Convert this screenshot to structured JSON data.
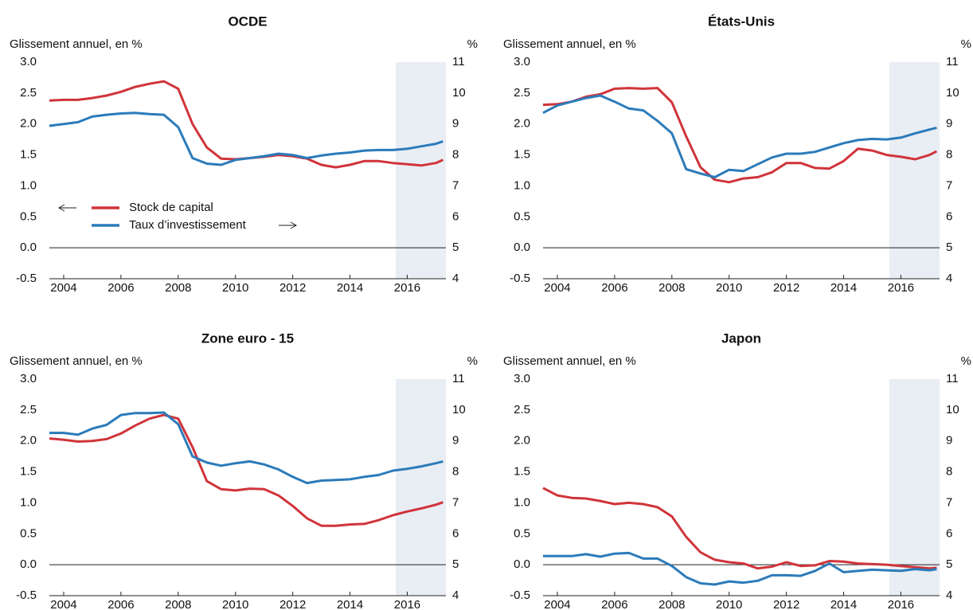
{
  "chart_data": [
    {
      "type": "line",
      "title": "OCDE",
      "ylabel": "Glissement annuel, en %",
      "y2label": "%",
      "x": [
        2003.5,
        2004,
        2004.5,
        2005,
        2005.5,
        2006,
        2006.5,
        2007,
        2007.5,
        2008,
        2008.5,
        2009,
        2009.5,
        2010,
        2010.5,
        2011,
        2011.5,
        2012,
        2012.5,
        2013,
        2013.5,
        2014,
        2014.5,
        2015,
        2015.5,
        2016,
        2016.5,
        2017,
        2017.25
      ],
      "series": [
        {
          "name": "Stock de capital",
          "color": "#d0343a",
          "values": [
            2.38,
            2.39,
            2.39,
            2.42,
            2.46,
            2.52,
            2.6,
            2.65,
            2.69,
            2.57,
            2.0,
            1.62,
            1.44,
            1.43,
            1.45,
            1.47,
            1.5,
            1.48,
            1.44,
            1.34,
            1.3,
            1.34,
            1.4,
            1.4,
            1.37,
            1.35,
            1.33,
            1.37,
            1.42
          ]
        },
        {
          "name": "Taux d’investissement",
          "color": "#2b7bba",
          "axis": "y2",
          "values": [
            8.94,
            9.0,
            9.06,
            9.24,
            9.3,
            9.34,
            9.36,
            9.32,
            9.3,
            8.9,
            7.9,
            7.72,
            7.68,
            7.84,
            7.9,
            7.96,
            8.04,
            8.0,
            7.9,
            7.98,
            8.04,
            8.08,
            8.14,
            8.16,
            8.16,
            8.2,
            8.28,
            8.36,
            8.44
          ]
        }
      ],
      "xlim": [
        2003.5,
        2017.35
      ],
      "xticks": [
        2004,
        2006,
        2008,
        2010,
        2012,
        2014,
        2016
      ],
      "ylim": [
        -0.5,
        3.0
      ],
      "yticks": [
        -0.5,
        {
          "value": 0,
          "label": "0.0"
        },
        0.5,
        {
          "value": 1,
          "label": "1.0"
        },
        1.5,
        {
          "value": 2,
          "label": "2.0"
        },
        2.5,
        {
          "value": 3,
          "label": "3.0"
        }
      ],
      "y2lim": [
        4,
        11
      ],
      "y2ticks": [
        4,
        5,
        6,
        7,
        8,
        9,
        10,
        11
      ],
      "shade": [
        2015.6,
        2017.35
      ]
    },
    {
      "type": "line",
      "title": "États-Unis",
      "ylabel": "Glissement annuel, en %",
      "y2label": "%",
      "x": [
        2003.5,
        2004,
        2004.5,
        2005,
        2005.5,
        2006,
        2006.5,
        2007,
        2007.5,
        2008,
        2008.5,
        2009,
        2009.5,
        2010,
        2010.5,
        2011,
        2011.5,
        2012,
        2012.5,
        2013,
        2013.5,
        2014,
        2014.5,
        2015,
        2015.5,
        2016,
        2016.5,
        2017,
        2017.25
      ],
      "series": [
        {
          "color": "#d0343a",
          "values": [
            2.31,
            2.32,
            2.36,
            2.44,
            2.48,
            2.57,
            2.58,
            2.57,
            2.58,
            2.35,
            1.8,
            1.3,
            1.1,
            1.06,
            1.12,
            1.14,
            1.22,
            1.37,
            1.37,
            1.29,
            1.28,
            1.4,
            1.6,
            1.57,
            1.5,
            1.47,
            1.43,
            1.5,
            1.56
          ]
        },
        {
          "color": "#2b7bba",
          "axis": "y2",
          "values": [
            9.36,
            9.6,
            9.72,
            9.84,
            9.92,
            9.72,
            9.5,
            9.44,
            9.1,
            8.7,
            7.54,
            7.4,
            7.28,
            7.52,
            7.48,
            7.7,
            7.92,
            8.04,
            8.04,
            8.1,
            8.24,
            8.38,
            8.48,
            8.52,
            8.5,
            8.56,
            8.7,
            8.82,
            8.88
          ]
        }
      ],
      "xlim": [
        2003.5,
        2017.35
      ],
      "xticks": [
        2004,
        2006,
        2008,
        2010,
        2012,
        2014,
        2016
      ],
      "ylim": [
        -0.5,
        3.0
      ],
      "yticks": [
        -0.5,
        {
          "value": 0,
          "label": "0.0"
        },
        0.5,
        {
          "value": 1,
          "label": "1.0"
        },
        1.5,
        {
          "value": 2,
          "label": "2.0"
        },
        2.5,
        {
          "value": 3,
          "label": "3.0"
        }
      ],
      "y2lim": [
        4,
        11
      ],
      "y2ticks": [
        4,
        5,
        6,
        7,
        8,
        9,
        10,
        11
      ],
      "shade": [
        2015.6,
        2017.35
      ]
    },
    {
      "type": "line",
      "title": "Zone euro - 15",
      "ylabel": "Glissement annuel, en %",
      "y2label": "%",
      "x": [
        2003.5,
        2004,
        2004.5,
        2005,
        2005.5,
        2006,
        2006.5,
        2007,
        2007.5,
        2008,
        2008.5,
        2009,
        2009.5,
        2010,
        2010.5,
        2011,
        2011.5,
        2012,
        2012.5,
        2013,
        2013.5,
        2014,
        2014.5,
        2015,
        2015.5,
        2016,
        2016.5,
        2017,
        2017.25
      ],
      "series": [
        {
          "color": "#d0343a",
          "values": [
            2.04,
            2.02,
            1.99,
            2.0,
            2.03,
            2.12,
            2.25,
            2.36,
            2.42,
            2.36,
            1.9,
            1.35,
            1.22,
            1.2,
            1.23,
            1.22,
            1.12,
            0.95,
            0.75,
            0.63,
            0.63,
            0.65,
            0.66,
            0.72,
            0.8,
            0.86,
            0.91,
            0.97,
            1.01
          ]
        },
        {
          "color": "#2b7bba",
          "axis": "y2",
          "values": [
            9.26,
            9.26,
            9.2,
            9.4,
            9.52,
            9.84,
            9.9,
            9.9,
            9.92,
            9.54,
            8.5,
            8.3,
            8.2,
            8.28,
            8.34,
            8.24,
            8.08,
            7.84,
            7.64,
            7.72,
            7.74,
            7.76,
            7.84,
            7.9,
            8.04,
            8.1,
            8.18,
            8.28,
            8.34
          ]
        }
      ],
      "xlim": [
        2003.5,
        2017.35
      ],
      "xticks": [
        2004,
        2006,
        2008,
        2010,
        2012,
        2014,
        2016
      ],
      "ylim": [
        -0.5,
        3.0
      ],
      "yticks": [
        -0.5,
        {
          "value": 0,
          "label": "0.0"
        },
        0.5,
        {
          "value": 1,
          "label": "1.0"
        },
        1.5,
        {
          "value": 2,
          "label": "2.0"
        },
        2.5,
        {
          "value": 3,
          "label": "3.0"
        }
      ],
      "y2lim": [
        4,
        11
      ],
      "y2ticks": [
        4,
        5,
        6,
        7,
        8,
        9,
        10,
        11
      ],
      "shade": [
        2015.6,
        2017.35
      ]
    },
    {
      "type": "line",
      "title": "Japon",
      "ylabel": "Glissement annuel, en %",
      "y2label": "%",
      "x": [
        2003.5,
        2004,
        2004.5,
        2005,
        2005.5,
        2006,
        2006.5,
        2007,
        2007.5,
        2008,
        2008.5,
        2009,
        2009.5,
        2010,
        2010.5,
        2011,
        2011.5,
        2012,
        2012.5,
        2013,
        2013.5,
        2014,
        2014.5,
        2015,
        2015.5,
        2016,
        2016.5,
        2017,
        2017.25
      ],
      "series": [
        {
          "color": "#d0343a",
          "values": [
            1.24,
            1.12,
            1.08,
            1.07,
            1.03,
            0.98,
            1.0,
            0.98,
            0.93,
            0.78,
            0.45,
            0.2,
            0.08,
            0.04,
            0.02,
            -0.06,
            -0.03,
            0.04,
            -0.02,
            -0.01,
            0.06,
            0.05,
            0.02,
            0.01,
            0.0,
            -0.02,
            -0.04,
            -0.06,
            -0.05
          ]
        },
        {
          "color": "#2b7bba",
          "axis": "y2",
          "values": [
            5.28,
            5.28,
            5.28,
            5.34,
            5.26,
            5.36,
            5.38,
            5.2,
            5.2,
            4.96,
            4.6,
            4.4,
            4.36,
            4.46,
            4.42,
            4.48,
            4.66,
            4.66,
            4.64,
            4.8,
            5.04,
            4.76,
            4.8,
            4.84,
            4.82,
            4.8,
            4.86,
            4.82,
            4.86
          ]
        }
      ],
      "xlim": [
        2003.5,
        2017.35
      ],
      "xticks": [
        2004,
        2006,
        2008,
        2010,
        2012,
        2014,
        2016
      ],
      "ylim": [
        -0.5,
        3.0
      ],
      "yticks": [
        -0.5,
        {
          "value": 0,
          "label": "0.0"
        },
        0.5,
        {
          "value": 1,
          "label": "1.0"
        },
        1.5,
        {
          "value": 2,
          "label": "2.0"
        },
        2.5,
        {
          "value": 3,
          "label": "3.0"
        }
      ],
      "y2lim": [
        4,
        11
      ],
      "y2ticks": [
        4,
        5,
        6,
        7,
        8,
        9,
        10,
        11
      ],
      "shade": [
        2015.6,
        2017.35
      ]
    }
  ]
}
